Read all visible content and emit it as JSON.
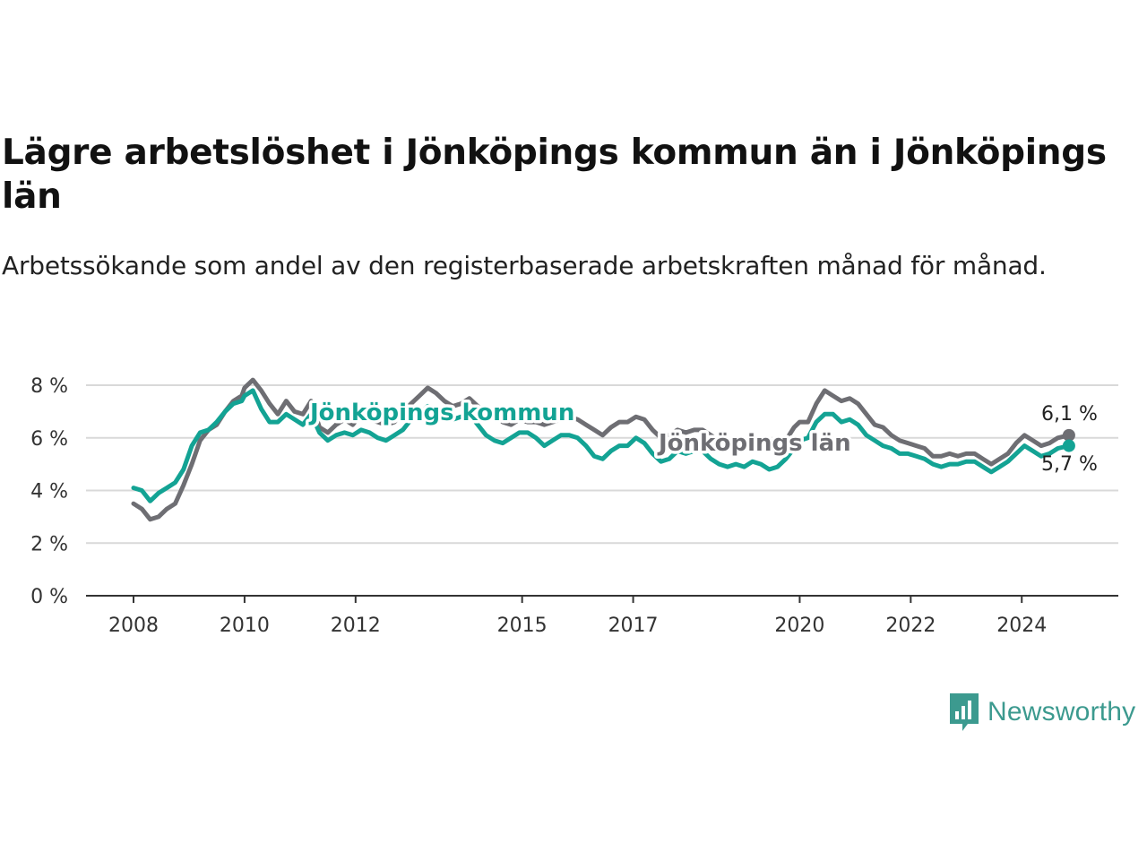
{
  "header": {
    "title": "Lägre arbetslöshet i Jönköpings kommun än i Jönköpings län",
    "subtitle": "Arbetssökande som andel av den registerbaserade arbetskraften månad för månad."
  },
  "brand": {
    "name": "Newsworthy",
    "icon": "newsworthy-logo-icon",
    "color": "#3c9a8f"
  },
  "chart_data": {
    "type": "line",
    "title": "Lägre arbetslöshet i Jönköpings kommun än i Jönköpings län",
    "subtitle": "Arbetssökande som andel av den registerbaserade arbetskraften månad för månad.",
    "xlim": [
      2008.0,
      2024.9
    ],
    "ylim": [
      0,
      8
    ],
    "x_ticks": [
      2008,
      2010,
      2012,
      2015,
      2017,
      2020,
      2022,
      2024
    ],
    "x_tick_labels": [
      "2008",
      "2010",
      "2012",
      "2015",
      "2017",
      "2020",
      "2022",
      "2024"
    ],
    "y_ticks": [
      0,
      2,
      4,
      6,
      8
    ],
    "y_tick_labels": [
      "0 %",
      "2 %",
      "4 %",
      "6 %",
      "8 %"
    ],
    "grid": "horizontal",
    "series": [
      {
        "name": "Jönköpings län",
        "color": "#6e6e73",
        "end_label": "6,1 %",
        "points": [
          [
            2008.0,
            3.5
          ],
          [
            2008.15,
            3.3
          ],
          [
            2008.3,
            2.9
          ],
          [
            2008.45,
            3.0
          ],
          [
            2008.6,
            3.3
          ],
          [
            2008.75,
            3.5
          ],
          [
            2008.9,
            4.2
          ],
          [
            2009.05,
            5.0
          ],
          [
            2009.2,
            5.9
          ],
          [
            2009.35,
            6.3
          ],
          [
            2009.5,
            6.5
          ],
          [
            2009.65,
            7.0
          ],
          [
            2009.8,
            7.4
          ],
          [
            2009.95,
            7.6
          ],
          [
            2010.0,
            7.9
          ],
          [
            2010.15,
            8.2
          ],
          [
            2010.3,
            7.8
          ],
          [
            2010.45,
            7.3
          ],
          [
            2010.6,
            6.9
          ],
          [
            2010.75,
            7.4
          ],
          [
            2010.9,
            7.0
          ],
          [
            2011.05,
            6.9
          ],
          [
            2011.2,
            7.4
          ],
          [
            2011.35,
            6.4
          ],
          [
            2011.5,
            6.2
          ],
          [
            2011.65,
            6.5
          ],
          [
            2011.8,
            6.7
          ],
          [
            2011.95,
            6.5
          ],
          [
            2012.1,
            6.9
          ],
          [
            2012.25,
            6.7
          ],
          [
            2012.4,
            6.6
          ],
          [
            2012.55,
            6.5
          ],
          [
            2012.7,
            6.6
          ],
          [
            2012.85,
            7.0
          ],
          [
            2013.0,
            7.3
          ],
          [
            2013.15,
            7.6
          ],
          [
            2013.3,
            7.9
          ],
          [
            2013.45,
            7.7
          ],
          [
            2013.6,
            7.4
          ],
          [
            2013.75,
            7.2
          ],
          [
            2013.9,
            7.3
          ],
          [
            2014.05,
            7.5
          ],
          [
            2014.2,
            7.2
          ],
          [
            2014.35,
            7.0
          ],
          [
            2014.5,
            6.9
          ],
          [
            2014.65,
            6.6
          ],
          [
            2014.8,
            6.5
          ],
          [
            2014.95,
            6.7
          ],
          [
            2015.1,
            6.6
          ],
          [
            2015.25,
            6.6
          ],
          [
            2015.4,
            6.5
          ],
          [
            2015.55,
            6.6
          ],
          [
            2015.7,
            6.7
          ],
          [
            2015.85,
            6.8
          ],
          [
            2016.0,
            6.7
          ],
          [
            2016.15,
            6.5
          ],
          [
            2016.3,
            6.3
          ],
          [
            2016.45,
            6.1
          ],
          [
            2016.6,
            6.4
          ],
          [
            2016.75,
            6.6
          ],
          [
            2016.9,
            6.6
          ],
          [
            2017.05,
            6.8
          ],
          [
            2017.2,
            6.7
          ],
          [
            2017.35,
            6.3
          ],
          [
            2017.5,
            6.0
          ],
          [
            2017.65,
            6.1
          ],
          [
            2017.8,
            6.3
          ],
          [
            2017.95,
            6.2
          ],
          [
            2018.1,
            6.3
          ],
          [
            2018.25,
            6.3
          ],
          [
            2018.4,
            6.1
          ],
          [
            2018.55,
            5.9
          ],
          [
            2018.7,
            5.7
          ],
          [
            2018.85,
            5.8
          ],
          [
            2019.0,
            5.7
          ],
          [
            2019.15,
            5.8
          ],
          [
            2019.3,
            5.7
          ],
          [
            2019.45,
            5.5
          ],
          [
            2019.6,
            5.6
          ],
          [
            2019.75,
            5.9
          ],
          [
            2019.9,
            6.4
          ],
          [
            2020.0,
            6.6
          ],
          [
            2020.15,
            6.6
          ],
          [
            2020.3,
            7.3
          ],
          [
            2020.45,
            7.8
          ],
          [
            2020.6,
            7.6
          ],
          [
            2020.75,
            7.4
          ],
          [
            2020.9,
            7.5
          ],
          [
            2021.05,
            7.3
          ],
          [
            2021.2,
            6.9
          ],
          [
            2021.35,
            6.5
          ],
          [
            2021.5,
            6.4
          ],
          [
            2021.65,
            6.1
          ],
          [
            2021.8,
            5.9
          ],
          [
            2021.95,
            5.8
          ],
          [
            2022.1,
            5.7
          ],
          [
            2022.25,
            5.6
          ],
          [
            2022.4,
            5.3
          ],
          [
            2022.55,
            5.3
          ],
          [
            2022.7,
            5.4
          ],
          [
            2022.85,
            5.3
          ],
          [
            2023.0,
            5.4
          ],
          [
            2023.15,
            5.4
          ],
          [
            2023.3,
            5.2
          ],
          [
            2023.45,
            5.0
          ],
          [
            2023.6,
            5.2
          ],
          [
            2023.75,
            5.4
          ],
          [
            2023.9,
            5.8
          ],
          [
            2024.05,
            6.1
          ],
          [
            2024.2,
            5.9
          ],
          [
            2024.35,
            5.7
          ],
          [
            2024.5,
            5.8
          ],
          [
            2024.65,
            6.0
          ],
          [
            2024.85,
            6.1
          ]
        ]
      },
      {
        "name": "Jönköpings kommun",
        "color": "#13a394",
        "end_label": "5,7 %",
        "points": [
          [
            2008.0,
            4.1
          ],
          [
            2008.15,
            4.0
          ],
          [
            2008.3,
            3.6
          ],
          [
            2008.45,
            3.9
          ],
          [
            2008.6,
            4.1
          ],
          [
            2008.75,
            4.3
          ],
          [
            2008.9,
            4.8
          ],
          [
            2009.05,
            5.7
          ],
          [
            2009.2,
            6.2
          ],
          [
            2009.35,
            6.3
          ],
          [
            2009.5,
            6.6
          ],
          [
            2009.65,
            7.0
          ],
          [
            2009.8,
            7.3
          ],
          [
            2009.95,
            7.4
          ],
          [
            2010.0,
            7.6
          ],
          [
            2010.15,
            7.8
          ],
          [
            2010.3,
            7.1
          ],
          [
            2010.45,
            6.6
          ],
          [
            2010.6,
            6.6
          ],
          [
            2010.75,
            6.9
          ],
          [
            2010.9,
            6.7
          ],
          [
            2011.05,
            6.5
          ],
          [
            2011.2,
            6.9
          ],
          [
            2011.35,
            6.2
          ],
          [
            2011.5,
            5.9
          ],
          [
            2011.65,
            6.1
          ],
          [
            2011.8,
            6.2
          ],
          [
            2011.95,
            6.1
          ],
          [
            2012.1,
            6.3
          ],
          [
            2012.25,
            6.2
          ],
          [
            2012.4,
            6.0
          ],
          [
            2012.55,
            5.9
          ],
          [
            2012.7,
            6.1
          ],
          [
            2012.85,
            6.3
          ],
          [
            2013.0,
            6.7
          ],
          [
            2013.15,
            6.9
          ],
          [
            2013.3,
            7.2
          ],
          [
            2013.45,
            7.0
          ],
          [
            2013.6,
            6.8
          ],
          [
            2013.75,
            6.7
          ],
          [
            2013.9,
            6.8
          ],
          [
            2014.05,
            6.9
          ],
          [
            2014.2,
            6.5
          ],
          [
            2014.35,
            6.1
          ],
          [
            2014.5,
            5.9
          ],
          [
            2014.65,
            5.8
          ],
          [
            2014.8,
            6.0
          ],
          [
            2014.95,
            6.2
          ],
          [
            2015.1,
            6.2
          ],
          [
            2015.25,
            6.0
          ],
          [
            2015.4,
            5.7
          ],
          [
            2015.55,
            5.9
          ],
          [
            2015.7,
            6.1
          ],
          [
            2015.85,
            6.1
          ],
          [
            2016.0,
            6.0
          ],
          [
            2016.15,
            5.7
          ],
          [
            2016.3,
            5.3
          ],
          [
            2016.45,
            5.2
          ],
          [
            2016.6,
            5.5
          ],
          [
            2016.75,
            5.7
          ],
          [
            2016.9,
            5.7
          ],
          [
            2017.05,
            6.0
          ],
          [
            2017.2,
            5.8
          ],
          [
            2017.35,
            5.4
          ],
          [
            2017.5,
            5.1
          ],
          [
            2017.65,
            5.2
          ],
          [
            2017.8,
            5.5
          ],
          [
            2017.95,
            5.4
          ],
          [
            2018.1,
            5.5
          ],
          [
            2018.25,
            5.5
          ],
          [
            2018.4,
            5.2
          ],
          [
            2018.55,
            5.0
          ],
          [
            2018.7,
            4.9
          ],
          [
            2018.85,
            5.0
          ],
          [
            2019.0,
            4.9
          ],
          [
            2019.15,
            5.1
          ],
          [
            2019.3,
            5.0
          ],
          [
            2019.45,
            4.8
          ],
          [
            2019.6,
            4.9
          ],
          [
            2019.75,
            5.2
          ],
          [
            2019.9,
            5.6
          ],
          [
            2020.0,
            5.9
          ],
          [
            2020.15,
            6.0
          ],
          [
            2020.3,
            6.6
          ],
          [
            2020.45,
            6.9
          ],
          [
            2020.6,
            6.9
          ],
          [
            2020.75,
            6.6
          ],
          [
            2020.9,
            6.7
          ],
          [
            2021.05,
            6.5
          ],
          [
            2021.2,
            6.1
          ],
          [
            2021.35,
            5.9
          ],
          [
            2021.5,
            5.7
          ],
          [
            2021.65,
            5.6
          ],
          [
            2021.8,
            5.4
          ],
          [
            2021.95,
            5.4
          ],
          [
            2022.1,
            5.3
          ],
          [
            2022.25,
            5.2
          ],
          [
            2022.4,
            5.0
          ],
          [
            2022.55,
            4.9
          ],
          [
            2022.7,
            5.0
          ],
          [
            2022.85,
            5.0
          ],
          [
            2023.0,
            5.1
          ],
          [
            2023.15,
            5.1
          ],
          [
            2023.3,
            4.9
          ],
          [
            2023.45,
            4.7
          ],
          [
            2023.6,
            4.9
          ],
          [
            2023.75,
            5.1
          ],
          [
            2023.9,
            5.4
          ],
          [
            2024.05,
            5.7
          ],
          [
            2024.2,
            5.5
          ],
          [
            2024.35,
            5.3
          ],
          [
            2024.5,
            5.4
          ],
          [
            2024.65,
            5.6
          ],
          [
            2024.85,
            5.7
          ]
        ]
      }
    ]
  }
}
